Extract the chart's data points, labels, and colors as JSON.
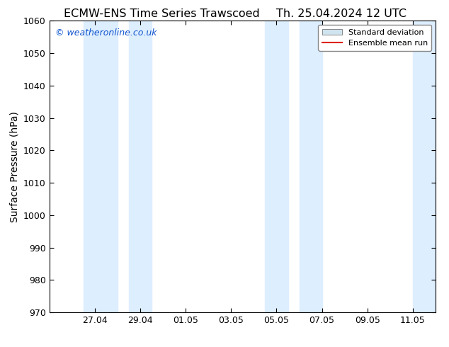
{
  "title_left": "ECMW-ENS Time Series Trawscoed",
  "title_right": "Th. 25.04.2024 12 UTC",
  "ylabel": "Surface Pressure (hPa)",
  "ylim": [
    970,
    1060
  ],
  "yticks": [
    970,
    980,
    990,
    1000,
    1010,
    1020,
    1030,
    1040,
    1050,
    1060
  ],
  "xtick_labels": [
    "27.04",
    "29.04",
    "01.05",
    "03.05",
    "05.05",
    "07.05",
    "09.05",
    "11.05"
  ],
  "xtick_positions": [
    2,
    4,
    6,
    8,
    10,
    12,
    14,
    16
  ],
  "xlim": [
    0,
    17
  ],
  "shaded_bands": [
    {
      "xmin": 1.5,
      "xmax": 3.0,
      "color": "#ddeeff"
    },
    {
      "xmin": 3.5,
      "xmax": 4.5,
      "color": "#ddeeff"
    },
    {
      "xmin": 9.5,
      "xmax": 10.5,
      "color": "#ddeeff"
    },
    {
      "xmin": 11.0,
      "xmax": 12.0,
      "color": "#ddeeff"
    },
    {
      "xmin": 16.0,
      "xmax": 17.0,
      "color": "#ddeeff"
    }
  ],
  "watermark": "© weatheronline.co.uk",
  "watermark_color": "#1155cc",
  "legend_std_dev_color": "#d0e4f0",
  "legend_mean_run_color": "#dd2200",
  "background_color": "#ffffff",
  "title_fontsize": 11.5,
  "tick_fontsize": 9,
  "ylabel_fontsize": 10
}
